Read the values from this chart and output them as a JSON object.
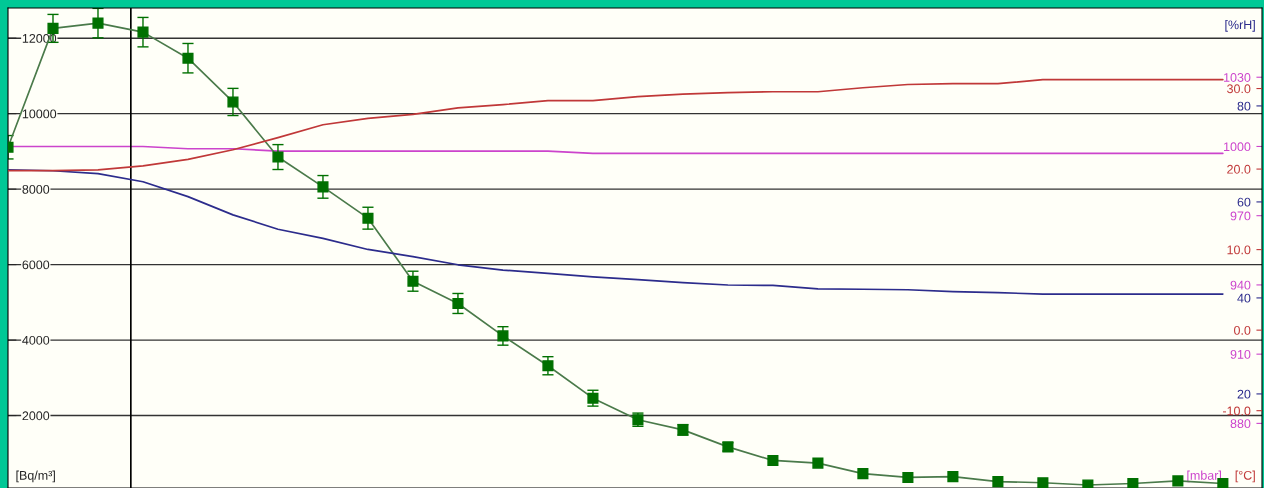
{
  "chart_data": [
    {
      "type": "line",
      "categories": [
        null,
        null,
        null,
        null,
        null,
        null,
        null,
        null,
        null,
        null,
        null,
        null,
        null,
        null,
        null,
        null,
        null,
        null,
        null,
        null,
        null,
        null,
        null,
        null,
        null,
        null,
        null,
        null
      ],
      "ylabel": "[Bq/m³]",
      "y2label": "[%rH]",
      "y3label": "[°C]",
      "ylim": [
        80,
        12800
      ],
      "yticks": [
        2000,
        4000,
        6000,
        8000,
        10000,
        12000
      ],
      "y2lim": [
        0.4,
        100.4
      ],
      "y2ticks": [
        20,
        40,
        60,
        80
      ],
      "y3lim": [
        -19.6,
        40
      ],
      "y3ticks": [
        {
          "value": -10,
          "label": "-10.0"
        },
        {
          "value": 0,
          "label": "0.0"
        },
        {
          "value": 10,
          "label": "10.0"
        },
        {
          "value": 20,
          "label": "20.0"
        },
        {
          "value": 30,
          "label": "30.0"
        }
      ],
      "grid": "y",
      "legend": false,
      "series": [
        {
          "axis": "y3",
          "color": "#c03838",
          "marker": "none",
          "values": [
            19.8,
            19.8,
            19.9,
            20.4,
            21.2,
            22.4,
            23.9,
            25.5,
            26.3,
            26.8,
            27.6,
            28.0,
            28.5,
            28.5,
            29.0,
            29.3,
            29.5,
            29.6,
            29.6,
            30.1,
            30.5,
            30.6,
            30.6,
            31.1,
            31.1,
            31.1,
            31.1,
            31.1
          ]
        },
        {
          "axis": "y2",
          "color": "#2c2c8c",
          "marker": "none",
          "values": [
            66.7,
            66.5,
            65.9,
            64.2,
            61.1,
            57.3,
            54.3,
            52.4,
            50.1,
            48.6,
            46.9,
            45.8,
            45.1,
            44.4,
            43.8,
            43.2,
            42.7,
            42.6,
            41.9,
            41.8,
            41.7,
            41.3,
            41.1,
            40.8,
            40.8,
            40.8,
            40.8,
            40.8
          ]
        },
        {
          "color": "#007000",
          "marker": "square",
          "values": [
            9110,
            12260,
            12400,
            12160,
            11470,
            10310,
            8850,
            8060,
            7230,
            5560,
            4970,
            4110,
            3320,
            2460,
            1890,
            1620,
            1170,
            810,
            740,
            460,
            360,
            380,
            250,
            220,
            160,
            200,
            270,
            200
          ],
          "errors": [
            310,
            370,
            390,
            390,
            390,
            360,
            330,
            300,
            290,
            265,
            265,
            245,
            240,
            210,
            175,
            140,
            110,
            null,
            null,
            null,
            null,
            null,
            null,
            null,
            null,
            null,
            null,
            null
          ]
        }
      ]
    },
    {
      "type": "line",
      "categories": [
        null,
        null,
        null,
        null,
        null,
        null,
        null,
        null,
        null,
        null,
        null,
        null,
        null,
        null,
        null,
        null,
        null,
        null,
        null,
        null,
        null,
        null,
        null,
        null,
        null,
        null,
        null,
        null
      ],
      "ylabel": "[mbar]",
      "ylim": [
        852,
        1060
      ],
      "yticks": [
        880,
        910,
        940,
        970,
        1000,
        1030
      ],
      "legend": false,
      "series": [
        {
          "color": "#cc44cc",
          "marker": "none",
          "values": [
            1000,
            1000,
            1000,
            1000,
            999,
            999,
            998,
            998,
            998,
            998,
            998,
            998,
            998,
            997,
            997,
            997,
            997,
            997,
            997,
            997,
            997,
            997,
            997,
            997,
            997,
            997,
            997,
            997
          ]
        }
      ]
    }
  ]
}
